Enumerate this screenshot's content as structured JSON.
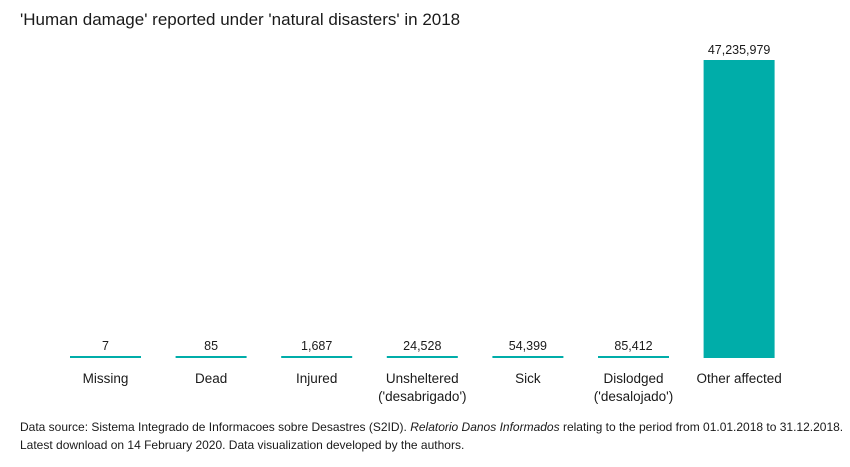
{
  "chart_data": {
    "type": "bar",
    "title": "'Human damage' reported under 'natural disasters' in 2018",
    "categories": [
      "Missing",
      "Dead",
      "Injured",
      "Unsheltered\n('desabrigado')",
      "Sick",
      "Dislodged\n('desalojado')",
      "Other affected"
    ],
    "values": [
      7,
      85,
      1687,
      24528,
      54399,
      85412,
      47235979
    ],
    "value_labels": [
      "7",
      "85",
      "1,687",
      "24,528",
      "54,399",
      "85,412",
      "47,235,979"
    ],
    "ylim": [
      0,
      47235979
    ],
    "grid": false,
    "legend": "none",
    "xlabel": "",
    "ylabel": ""
  },
  "colors": {
    "bar": "#00ada9",
    "text": "#1a1a1a"
  },
  "footer": {
    "source_prefix": "Data source: Sistema Integrado de Informacoes sobre Desastres (S2ID). ",
    "source_italic": "Relatorio Danos Informados",
    "source_suffix": " relating to the period from 01.01.2018 to 31.12.2018.",
    "line2": "Latest download on 14 February 2020. Data visualization developed by the authors."
  }
}
